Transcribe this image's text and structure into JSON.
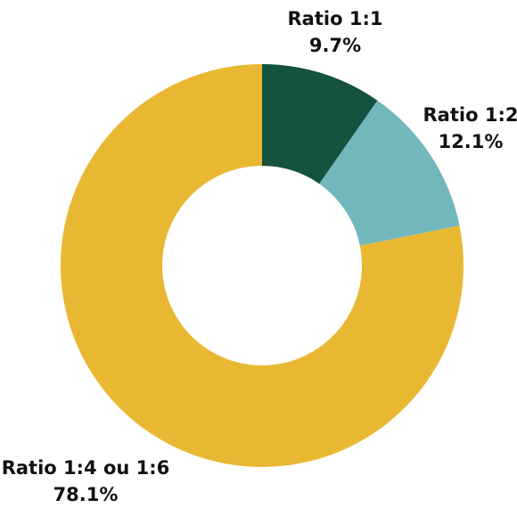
{
  "chart_data": {
    "type": "donut",
    "categories": [
      "Ratio 1:1",
      "Ratio 1:2",
      "Ratio 1:4 ou 1:6"
    ],
    "values": [
      9.7,
      12.1,
      78.1
    ],
    "value_labels": [
      "9.7%",
      "12.1%",
      "78.1%"
    ],
    "colors": [
      "#15523f",
      "#72b7bc",
      "#e9b833"
    ]
  }
}
